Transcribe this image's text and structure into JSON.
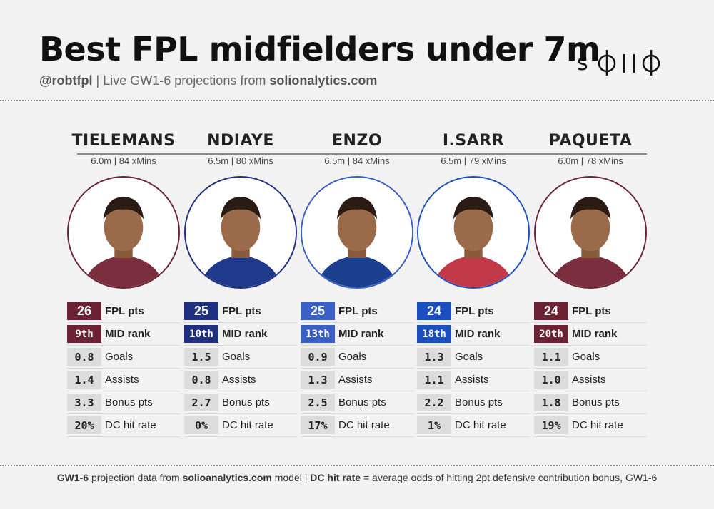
{
  "title": "Best FPL midfielders under 7m",
  "subtitle": {
    "handle": "@robtfpl",
    "sep": "|",
    "text": "Live GW1-6 projections from",
    "site": "solionalytics.com"
  },
  "logo": "solio",
  "colors": {
    "claret": "#6b2333",
    "navy": "#1e2f80",
    "chelsea": "#3a5fc5",
    "palace": "#1b4fbf",
    "west_ham": "#6b2333"
  },
  "players": [
    {
      "name": "TIELEMANS",
      "meta": "6.0m | 84 xMins",
      "color": "#6b2333",
      "shirt": "#7a2e3e",
      "pts": "26",
      "pts_label": "FPL pts",
      "rank": "9th",
      "rank_label": "MID rank",
      "goals": "0.8",
      "goals_label": "Goals",
      "assists": "1.4",
      "assists_label": "Assists",
      "bonus": "3.3",
      "bonus_label": "Bonus pts",
      "dc": "20%",
      "dc_label": "DC hit rate"
    },
    {
      "name": "NDIAYE",
      "meta": "6.5m | 80 xMins",
      "color": "#1e2f80",
      "shirt": "#1f3a8a",
      "pts": "25",
      "pts_label": "FPL pts",
      "rank": "10th",
      "rank_label": "MID rank",
      "goals": "1.5",
      "goals_label": "Goals",
      "assists": "0.8",
      "assists_label": "Assists",
      "bonus": "2.7",
      "bonus_label": "Bonus pts",
      "dc": "0%",
      "dc_label": "DC hit rate"
    },
    {
      "name": "ENZO",
      "meta": "6.5m | 84 xMins",
      "color": "#3a5fc5",
      "shirt": "#1d3f8f",
      "pts": "25",
      "pts_label": "FPL pts",
      "rank": "13th",
      "rank_label": "MID rank",
      "goals": "0.9",
      "goals_label": "Goals",
      "assists": "1.3",
      "assists_label": "Assists",
      "bonus": "2.5",
      "bonus_label": "Bonus pts",
      "dc": "17%",
      "dc_label": "DC hit rate"
    },
    {
      "name": "I.SARR",
      "meta": "6.5m | 79 xMins",
      "color": "#1b4fbf",
      "shirt": "#c23a4a",
      "pts": "24",
      "pts_label": "FPL pts",
      "rank": "18th",
      "rank_label": "MID rank",
      "goals": "1.3",
      "goals_label": "Goals",
      "assists": "1.1",
      "assists_label": "Assists",
      "bonus": "2.2",
      "bonus_label": "Bonus pts",
      "dc": "1%",
      "dc_label": "DC hit rate"
    },
    {
      "name": "PAQUETA",
      "meta": "6.0m | 78 xMins",
      "color": "#6b2333",
      "shirt": "#7a2e3e",
      "pts": "24",
      "pts_label": "FPL pts",
      "rank": "20th",
      "rank_label": "MID rank",
      "goals": "1.1",
      "goals_label": "Goals",
      "assists": "1.0",
      "assists_label": "Assists",
      "bonus": "1.8",
      "bonus_label": "Bonus pts",
      "dc": "19%",
      "dc_label": "DC hit rate"
    }
  ],
  "footer": {
    "a_bold": "GW1-6",
    "a_text": "projection data from",
    "a_site": "solioanalytics.com",
    "a_tail": "model",
    "sep": "|",
    "b_bold": "DC hit rate",
    "b_text": "= average odds of hitting 2pt defensive contribution bonus, GW1-6"
  }
}
